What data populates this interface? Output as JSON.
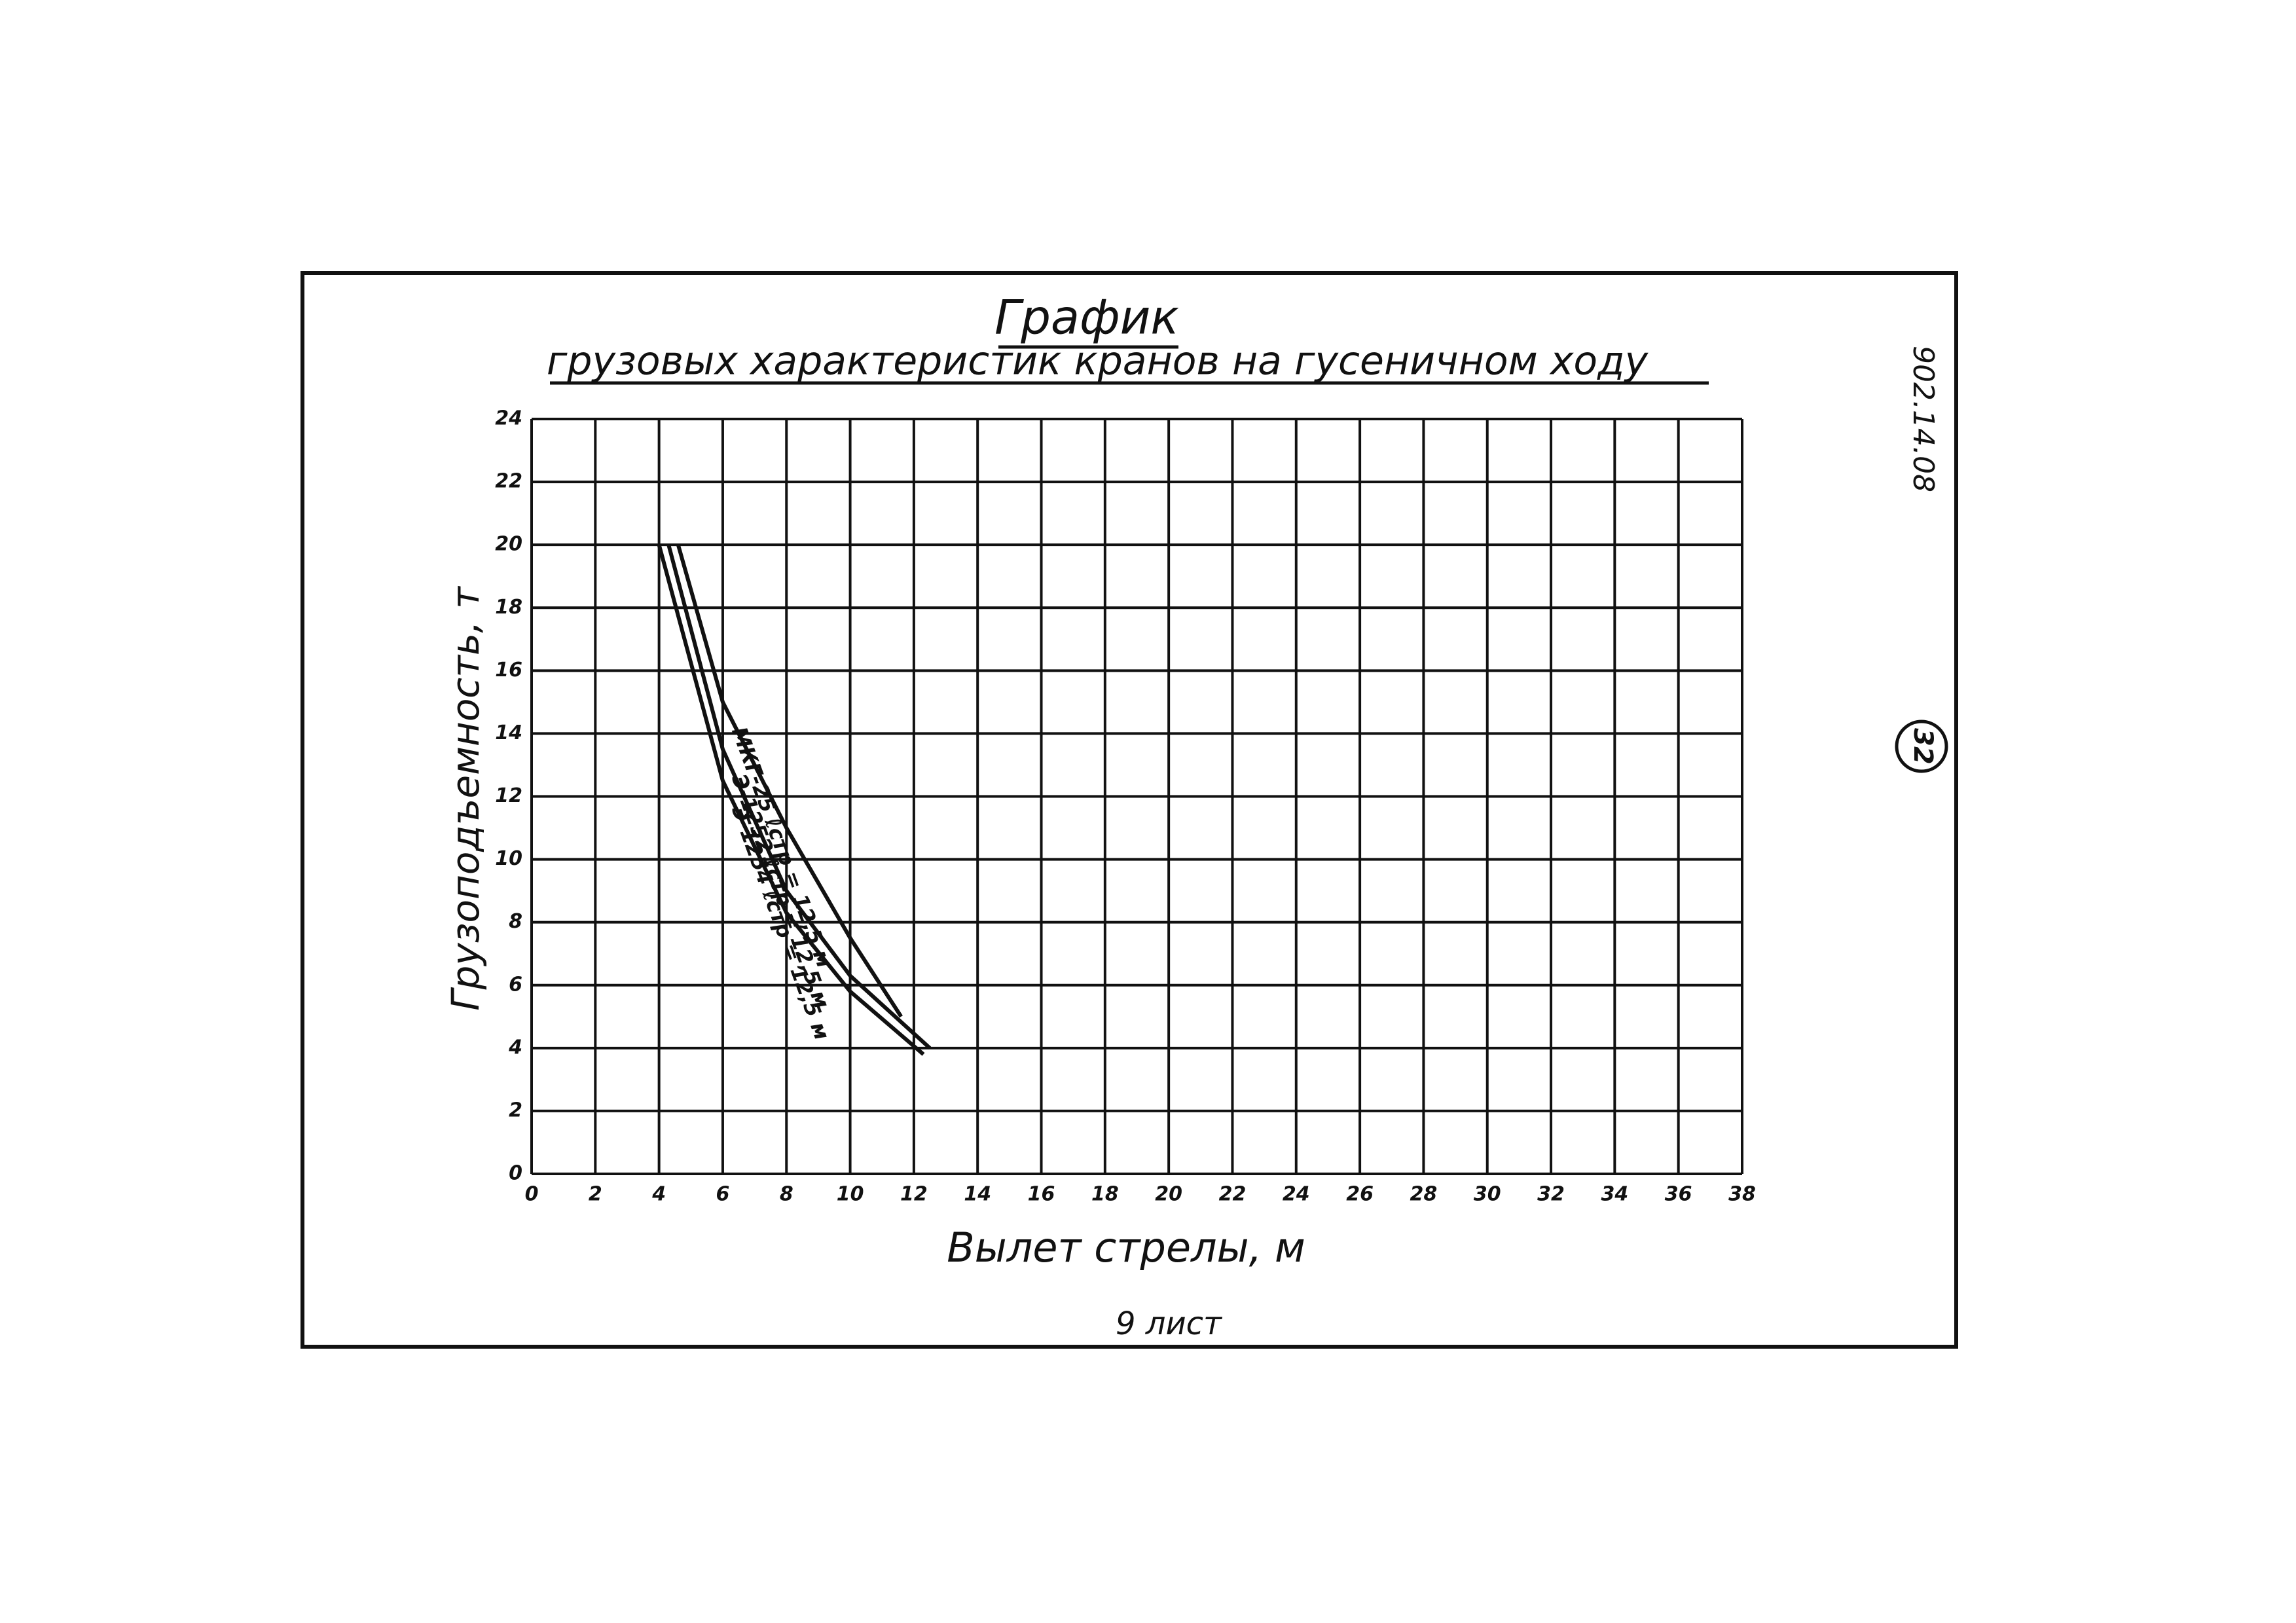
{
  "document": {
    "code": "902.14.08",
    "page_number": "32",
    "footer": "9 лист"
  },
  "chart_data": {
    "type": "line",
    "title": "График",
    "subtitle": "грузовых характеристик кранов на гусеничном ходу",
    "x_label": "Вылет стрелы, м",
    "y_label": "Грузоподъемность, т",
    "xlim": [
      0,
      38
    ],
    "xticks": [
      0,
      2,
      4,
      6,
      8,
      10,
      12,
      14,
      16,
      18,
      20,
      22,
      24,
      26,
      28,
      30,
      32,
      34,
      36,
      38
    ],
    "ylim": [
      0,
      24
    ],
    "yticks": [
      0,
      2,
      4,
      6,
      8,
      10,
      12,
      14,
      16,
      18,
      20,
      22,
      24
    ],
    "grid": true,
    "series": [
      {
        "name": "МКГ-25 ℓстр = 12,5 м",
        "color": "#111111",
        "x": [
          4.6,
          6,
          8,
          10,
          11.6
        ],
        "values": [
          20,
          15,
          11,
          7.5,
          5
        ]
      },
      {
        "name": "Э-1252 ℓстр = 12,5 м",
        "color": "#111111",
        "x": [
          4.3,
          6,
          8,
          10,
          12.5
        ],
        "values": [
          20,
          13.5,
          9,
          6.3,
          4
        ]
      },
      {
        "name": "Э-1254 ℓстр = 12,5 м",
        "color": "#111111",
        "x": [
          4,
          6,
          8,
          10,
          12.3
        ],
        "values": [
          20,
          12.5,
          8.3,
          5.8,
          3.8
        ]
      }
    ]
  }
}
